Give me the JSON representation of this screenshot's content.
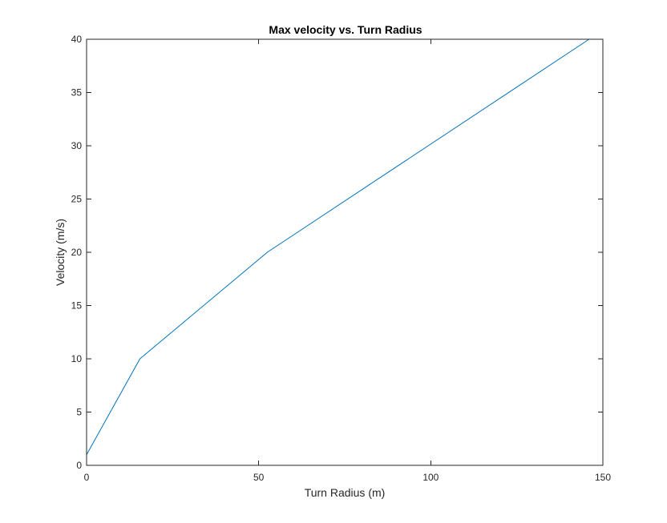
{
  "chart_data": {
    "type": "line",
    "title": "Max velocity vs. Turn Radius",
    "xlabel": "Turn Radius (m)",
    "ylabel": "Velocity (m/s)",
    "xlim": [
      0,
      150
    ],
    "ylim": [
      0,
      40
    ],
    "xticks": [
      0,
      50,
      100,
      150
    ],
    "yticks": [
      0,
      5,
      10,
      15,
      20,
      25,
      30,
      35,
      40
    ],
    "grid": false,
    "series": [
      {
        "color": "#0072BD",
        "x": [
          0,
          15.5,
          52.5,
          146
        ],
        "y": [
          1,
          10,
          20,
          40
        ]
      }
    ]
  }
}
